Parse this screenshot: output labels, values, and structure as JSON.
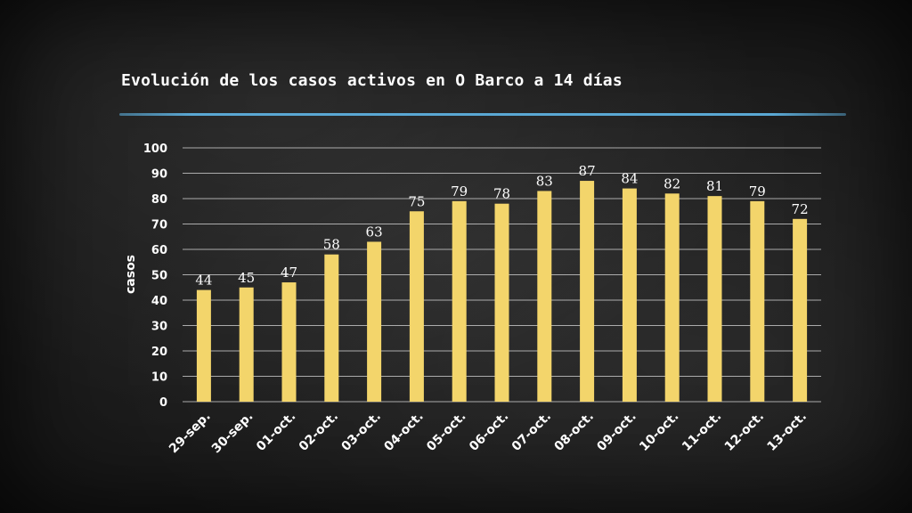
{
  "chart_data": {
    "type": "bar",
    "title": "Evolución de los casos activos en O Barco a 14 días",
    "ylabel": "casos",
    "xlabel": "",
    "ylim": [
      0,
      100
    ],
    "yticks": [
      0,
      10,
      20,
      30,
      40,
      50,
      60,
      70,
      80,
      90,
      100
    ],
    "grid": true,
    "categories": [
      "29-sep.",
      "30-sep.",
      "01-oct.",
      "02-oct.",
      "03-oct.",
      "04-oct.",
      "05-oct.",
      "06-oct.",
      "07-oct.",
      "08-oct.",
      "09-oct.",
      "10-oct.",
      "11-oct.",
      "12-oct.",
      "13-oct."
    ],
    "values": [
      44,
      45,
      47,
      58,
      63,
      75,
      79,
      78,
      83,
      87,
      84,
      82,
      81,
      79,
      72
    ],
    "colors": {
      "bar": "#f3d56b",
      "grid": "#d8d8d8",
      "text": "#ffffff",
      "rule": "#5aa8d4"
    }
  }
}
